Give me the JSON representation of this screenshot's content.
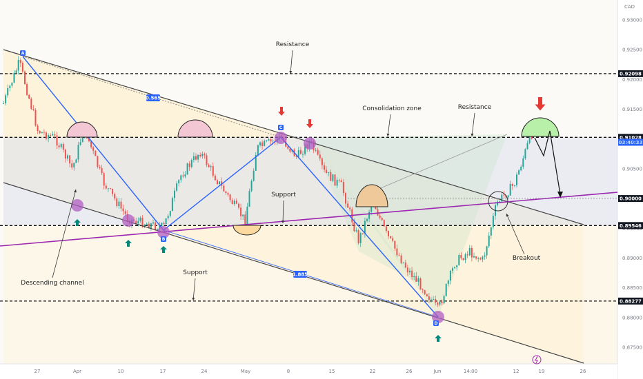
{
  "chart_data": {
    "type": "candlestick",
    "currency": "CAD",
    "x_ticks": [
      "27",
      "Apr",
      "10",
      "17",
      "24",
      "May",
      "8",
      "15",
      "22",
      "26",
      "Jun",
      "14:00",
      "12",
      "19",
      "26"
    ],
    "y_ticks": [
      "0.93000",
      "0.92500",
      "0.92000",
      "0.91500",
      "0.91000",
      "0.90500",
      "0.90000",
      "0.89500",
      "0.89000",
      "0.88500",
      "0.88000",
      "0.87500"
    ],
    "price_tags": [
      {
        "value": "0.92098",
        "price": 0.92098,
        "style": "dark"
      },
      {
        "value": "0.91028",
        "price": 0.91028,
        "style": "dark"
      },
      {
        "value": "03:40:33",
        "price": 0.90945,
        "style": "blue"
      },
      {
        "value": "0.90000",
        "price": 0.9,
        "style": "dark"
      },
      {
        "value": "0.89546",
        "price": 0.89546,
        "style": "dark"
      },
      {
        "value": "0.88277",
        "price": 0.88277,
        "style": "dark"
      }
    ],
    "levels": [
      0.92098,
      0.91028,
      0.89546,
      0.88277
    ],
    "pattern_points": [
      {
        "label": "A",
        "price": 0.9236
      },
      {
        "label": "B",
        "price": 0.8942
      },
      {
        "label": "C",
        "price": 0.9103
      },
      {
        "label": "D",
        "price": 0.8798
      }
    ],
    "ratios": [
      "0.565",
      "1.885"
    ],
    "annotations": [
      "Resistance",
      "Consolidation zone",
      "Resistance",
      "Support",
      "Support",
      "Descending channel",
      "Breakout"
    ],
    "grid": false
  }
}
